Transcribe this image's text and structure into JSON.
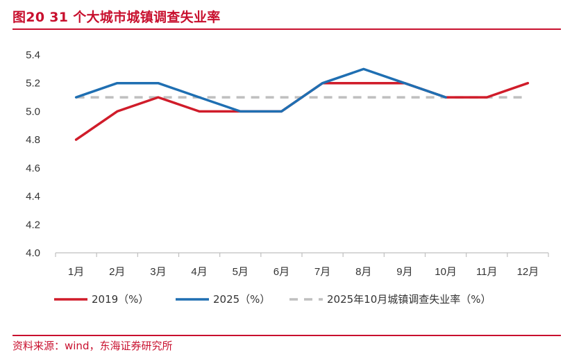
{
  "header": {
    "title": "图20  31 个大城市城镇调查失业率"
  },
  "footer": {
    "source": "资料来源：wind，东海证券研究所"
  },
  "colors": {
    "brand": "#c8102e",
    "series_2019": "#d01c2a",
    "series_2025": "#1f6fb2",
    "reference": "#bfbfbf",
    "axis": "#bfbfbf"
  },
  "chart_data": {
    "type": "line",
    "categories": [
      "1月",
      "2月",
      "3月",
      "4月",
      "5月",
      "6月",
      "7月",
      "8月",
      "9月",
      "10月",
      "11月",
      "12月"
    ],
    "ylim": [
      4.0,
      5.4
    ],
    "yticks": [
      "5.4",
      "5.2",
      "5.0",
      "4.8",
      "4.6",
      "4.4",
      "4.2",
      "4.0"
    ],
    "grid": false,
    "legend_position": "bottom",
    "series": [
      {
        "name": "2019（%）",
        "style": "solid",
        "color": "#d01c2a",
        "values": [
          4.8,
          5.0,
          5.1,
          5.0,
          5.0,
          5.0,
          5.2,
          5.2,
          5.2,
          5.1,
          5.1,
          5.2
        ]
      },
      {
        "name": "2025（%）",
        "style": "solid",
        "color": "#1f6fb2",
        "values": [
          5.1,
          5.2,
          5.2,
          5.1,
          5.0,
          5.0,
          5.2,
          5.3,
          5.2,
          5.1,
          null,
          null
        ]
      },
      {
        "name": "2025年10月城镇调查失业率（%）",
        "style": "dashed",
        "color": "#bfbfbf",
        "values": [
          5.1,
          5.1,
          5.1,
          5.1,
          5.1,
          5.1,
          5.1,
          5.1,
          5.1,
          5.1,
          5.1,
          5.1
        ]
      }
    ]
  }
}
